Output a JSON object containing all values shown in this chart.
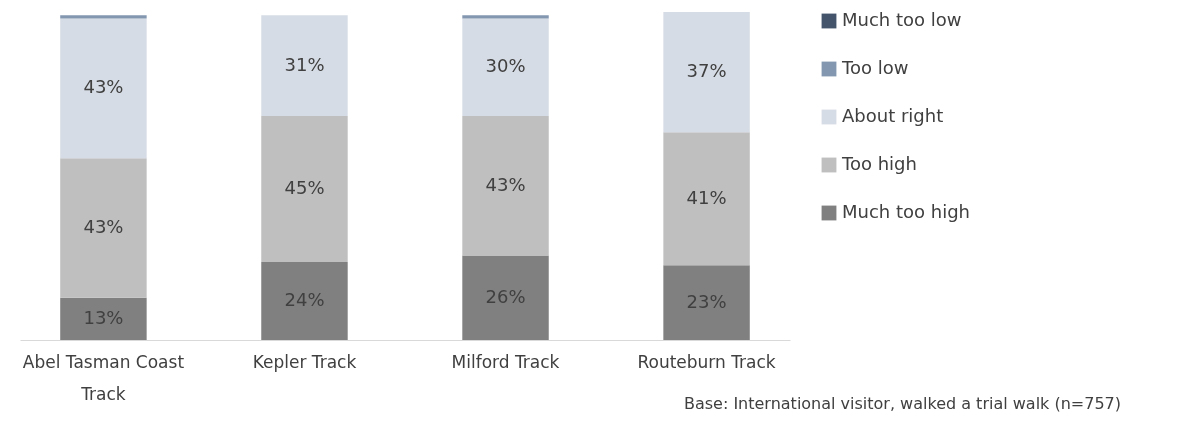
{
  "chart_data": {
    "type": "bar",
    "stacked": true,
    "categories": [
      "Abel Tasman Coast Track",
      "Kepler Track",
      "Milford Track",
      "Routeburn Track"
    ],
    "series": [
      {
        "name": "Much too high",
        "color": "#808080",
        "values": [
          13,
          24,
          26,
          23
        ],
        "value_labels": [
          "13%",
          "24%",
          "26%",
          "23%"
        ]
      },
      {
        "name": "Too high",
        "color": "#bfbfbf",
        "values": [
          43,
          45,
          43,
          41
        ],
        "value_labels": [
          "43%",
          "45%",
          "43%",
          "41%"
        ]
      },
      {
        "name": "About right",
        "color": "#d6dce5",
        "values": [
          43,
          31,
          30,
          37
        ],
        "value_labels": [
          "43%",
          "31%",
          "30%",
          "37%"
        ]
      },
      {
        "name": "Too low",
        "color": "#8497b0",
        "values": [
          1,
          0,
          1,
          0
        ],
        "value_labels": [
          null,
          null,
          null,
          null
        ]
      },
      {
        "name": "Much too low",
        "color": "#44546a",
        "values": [
          0,
          0,
          0,
          0
        ],
        "value_labels": [
          null,
          null,
          null,
          null
        ]
      }
    ],
    "legend": "right",
    "grid": false,
    "annotations": [
      "Base: International visitor, walked a trial walk (n=757)"
    ]
  }
}
